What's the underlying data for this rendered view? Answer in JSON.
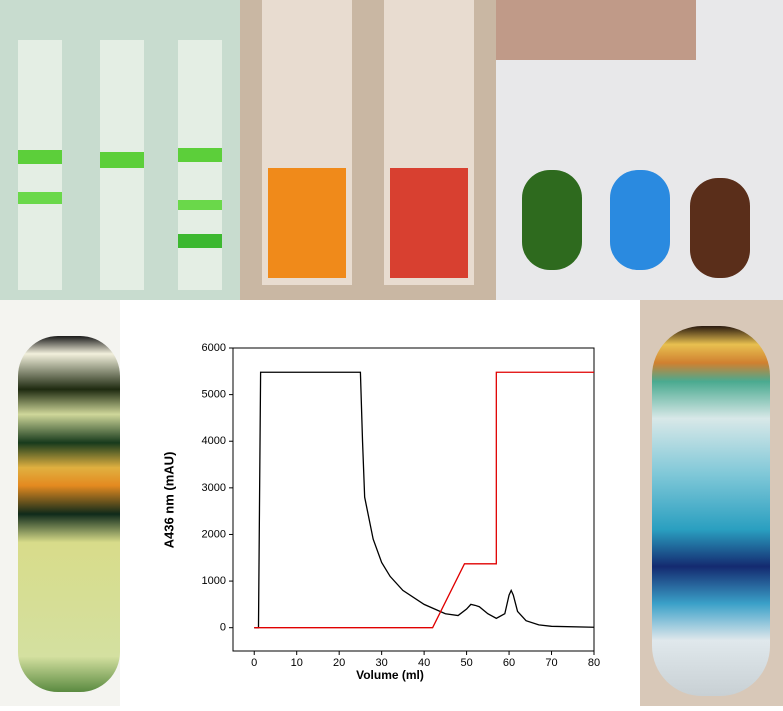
{
  "chart_data": {
    "type": "line",
    "x_label": "Volume (ml)",
    "y_label": "A436 nm (mAU)",
    "xlim": [
      -5,
      80
    ],
    "xticks": [
      0,
      10,
      20,
      30,
      40,
      50,
      60,
      70,
      80
    ],
    "ylim": [
      -500,
      6000
    ],
    "yticks": [
      0,
      1000,
      2000,
      3000,
      4000,
      5000,
      6000
    ],
    "series": [
      {
        "color": "#000000",
        "x": [
          0,
          1,
          1.5,
          25,
          25.5,
          26,
          28,
          30,
          32,
          35,
          40,
          45,
          48,
          50,
          51,
          52,
          53,
          55,
          57,
          59,
          60,
          60.5,
          61,
          62,
          64,
          67,
          70,
          80
        ],
        "values": [
          0,
          0,
          5480,
          5480,
          4000,
          2800,
          1900,
          1400,
          1100,
          800,
          500,
          300,
          260,
          400,
          500,
          480,
          450,
          300,
          200,
          300,
          700,
          800,
          700,
          350,
          150,
          60,
          30,
          10
        ]
      },
      {
        "color": "#e00000",
        "x": [
          0,
          42,
          49.5,
          57,
          57,
          80
        ],
        "values": [
          0,
          0,
          1370,
          1370,
          5480,
          5480
        ]
      }
    ]
  }
}
